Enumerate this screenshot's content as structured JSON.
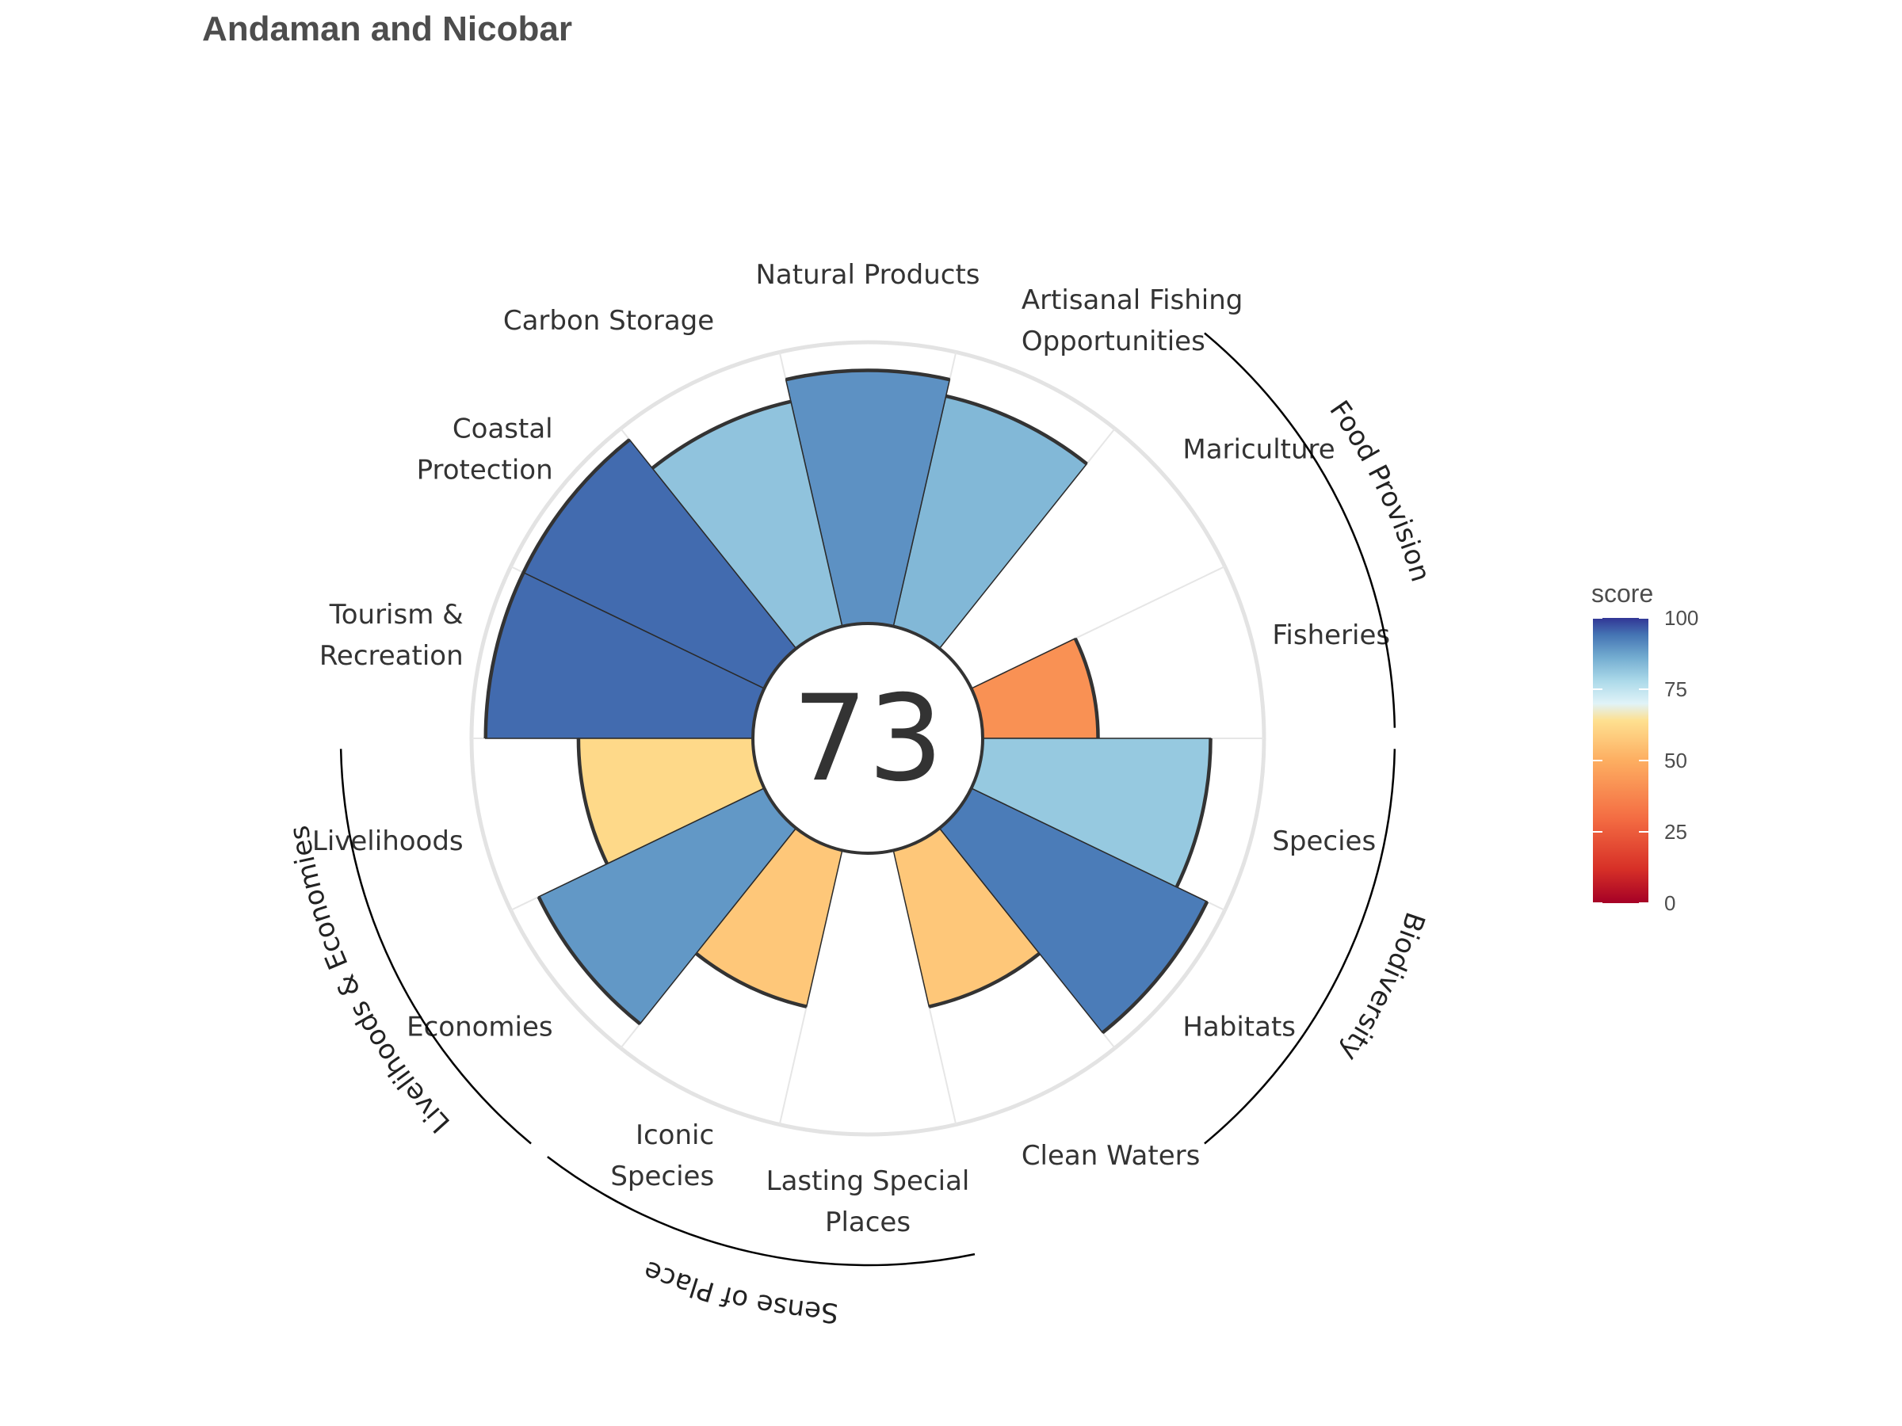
{
  "title": "Andaman and Nicobar",
  "chart_data": {
    "type": "polar-bar",
    "title": "Andaman and Nicobar",
    "overall_score": "73",
    "rlim": [
      0,
      100
    ],
    "goals": [
      {
        "lines": [
          "Fisheries"
        ],
        "value": 41,
        "group": 0
      },
      {
        "lines": [
          "Mariculture"
        ],
        "value": 0,
        "group": 0
      },
      {
        "lines": [
          "Artisanal Fishing",
          "Opportunities"
        ],
        "value": 84,
        "group": null
      },
      {
        "lines": [
          "Natural Products"
        ],
        "value": 90,
        "group": null
      },
      {
        "lines": [
          "Carbon Storage"
        ],
        "value": 82,
        "group": null
      },
      {
        "lines": [
          "Coastal",
          "Protection"
        ],
        "value": 95,
        "group": null
      },
      {
        "lines": [
          "Tourism &",
          "Recreation"
        ],
        "value": 95,
        "group": null
      },
      {
        "lines": [
          "Livelihoods"
        ],
        "value": 62,
        "group": 2
      },
      {
        "lines": [
          "Economies"
        ],
        "value": 89,
        "group": 2
      },
      {
        "lines": [
          "Iconic",
          "Species"
        ],
        "value": 57,
        "group": 3
      },
      {
        "lines": [
          "Lasting Special",
          "Places"
        ],
        "value": 0,
        "group": 3
      },
      {
        "lines": [
          "Clean Waters"
        ],
        "value": 57,
        "group": null
      },
      {
        "lines": [
          "Habitats"
        ],
        "value": 93,
        "group": 1
      },
      {
        "lines": [
          "Species"
        ],
        "value": 81,
        "group": 1
      }
    ],
    "groups": [
      {
        "name": "Food Provision"
      },
      {
        "name": "Biodiversity"
      },
      {
        "name": "Livelihoods & Economies"
      },
      {
        "name": "Sense of Place"
      }
    ],
    "legend": {
      "title": "score",
      "placement": "right",
      "ticks": [
        "0",
        "25",
        "50",
        "75",
        "100"
      ],
      "colors": [
        "#a50026",
        "#d73027",
        "#f46d43",
        "#fdae61",
        "#fee090",
        "#e0f3f8",
        "#abd9e9",
        "#74add1",
        "#4575b4",
        "#313695"
      ]
    }
  }
}
